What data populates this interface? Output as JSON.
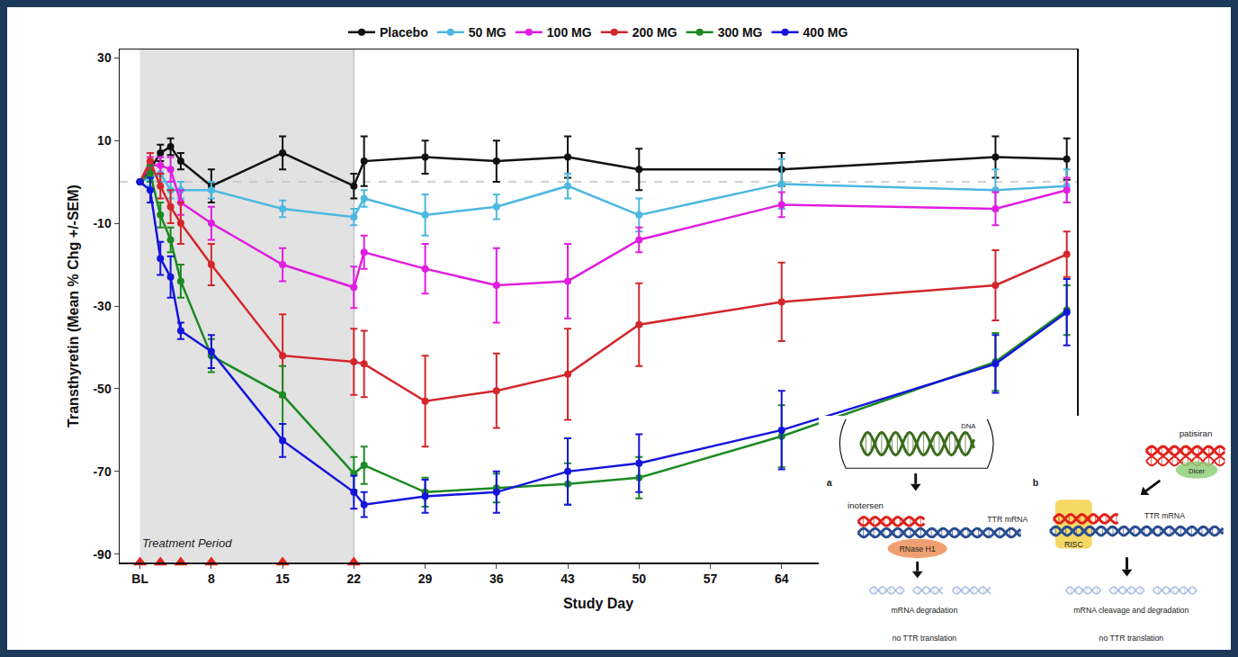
{
  "chart_data": {
    "type": "line",
    "x_label": "Study Day",
    "y_label": "Transthyretin (Mean % Chg +/-SEM)",
    "x": [
      1,
      2,
      3,
      4,
      5,
      8,
      15,
      22,
      23,
      29,
      36,
      43,
      50,
      64,
      85,
      92
    ],
    "xlim": [
      -1,
      93
    ],
    "xticks": [
      {
        "value": 1,
        "label": "BL"
      },
      8,
      15,
      22,
      29,
      36,
      43,
      50,
      57,
      64
    ],
    "ylim": [
      -92,
      32
    ],
    "yticks": [
      -90,
      -70,
      -50,
      -30,
      -10,
      10,
      30
    ],
    "grid": false,
    "legend": "top",
    "marker": "circle",
    "series": [
      {
        "name": "Placebo",
        "color": "#111111",
        "values": [
          0,
          3,
          7,
          8.5,
          5,
          -1,
          7,
          -1,
          5,
          6,
          5,
          6,
          3,
          3,
          6,
          5.5
        ],
        "errors": [
          0,
          2,
          2,
          2,
          2,
          4,
          4,
          3,
          6,
          4,
          5,
          5,
          5,
          4,
          5,
          5
        ]
      },
      {
        "name": "50 MG",
        "color": "#4cb8e0",
        "values": [
          0,
          1,
          2,
          -2,
          -2,
          -2,
          -6.5,
          -8.5,
          -4,
          -8,
          -6,
          -1,
          -8,
          -0.5,
          -2,
          -1
        ],
        "errors": [
          0,
          2,
          2,
          2,
          2,
          2,
          2,
          2,
          2,
          5,
          3,
          3,
          4,
          6,
          5,
          4
        ]
      },
      {
        "name": "100 MG",
        "color": "#e01ee0",
        "values": [
          0,
          4,
          4,
          3,
          -5,
          -10,
          -20,
          -25.5,
          -17,
          -21,
          -25,
          -24,
          -14,
          -5.5,
          -6.5,
          -2
        ],
        "errors": [
          0,
          2,
          2,
          3,
          3,
          4,
          4,
          5,
          4,
          6,
          9,
          9,
          3,
          3,
          4,
          3
        ]
      },
      {
        "name": "200 MG",
        "color": "#d3262b",
        "values": [
          0,
          5,
          -1,
          -6,
          -10,
          -20,
          -42,
          -43.5,
          -44,
          -53,
          -50.5,
          -46.5,
          -34.5,
          -29,
          -25,
          -17.5
        ],
        "errors": [
          0,
          2,
          3,
          4,
          5,
          5,
          10,
          8,
          8,
          11,
          9,
          11,
          10,
          9.5,
          8.5,
          5.5
        ]
      },
      {
        "name": "300 MG",
        "color": "#1b8a22",
        "values": [
          0,
          2,
          -8,
          -14,
          -24,
          -42,
          -51.5,
          -70.5,
          -68.5,
          -75,
          -74,
          -73,
          -71.5,
          -61.5,
          -43.5,
          -31
        ],
        "errors": [
          0,
          2,
          3,
          3,
          4,
          4,
          7,
          4,
          4.5,
          3.5,
          3.5,
          5,
          5,
          7.5,
          7,
          6
        ]
      },
      {
        "name": "400 MG",
        "color": "#1414dc",
        "values": [
          0,
          -2,
          -18.5,
          -23,
          -36,
          -41,
          -62.5,
          -75,
          -78,
          -76,
          -75,
          -70,
          -68,
          -60,
          -44,
          -31.5
        ],
        "errors": [
          0,
          3,
          4,
          5,
          2,
          4,
          4,
          4,
          3,
          4,
          5,
          8,
          7,
          9.5,
          7,
          8
        ]
      }
    ],
    "shaded_period": {
      "label": "Treatment Period",
      "range": [
        1,
        22
      ],
      "color": "#e2e2e2"
    },
    "dose_markers": {
      "x": [
        1,
        3,
        5,
        8,
        15,
        22
      ],
      "color": "#e3231c",
      "marker": "triangle-up"
    },
    "reference_line": {
      "y": 0,
      "line_style": "dash",
      "color": "#c4c4c4"
    }
  },
  "diagram": {
    "a": {
      "letter": "a",
      "dna": "DNA",
      "drug": "inotersen",
      "target": "TTR mRNA",
      "enzyme": "RNase H1",
      "step": "mRNA degradation",
      "result": "no TTR translation"
    },
    "b": {
      "letter": "b",
      "drug": "patisiran",
      "enzyme": "Dicer",
      "complex": "RISC",
      "target": "TTR mRNA",
      "step": "mRNA cleavage and degradation",
      "result": "no TTR translation"
    }
  }
}
